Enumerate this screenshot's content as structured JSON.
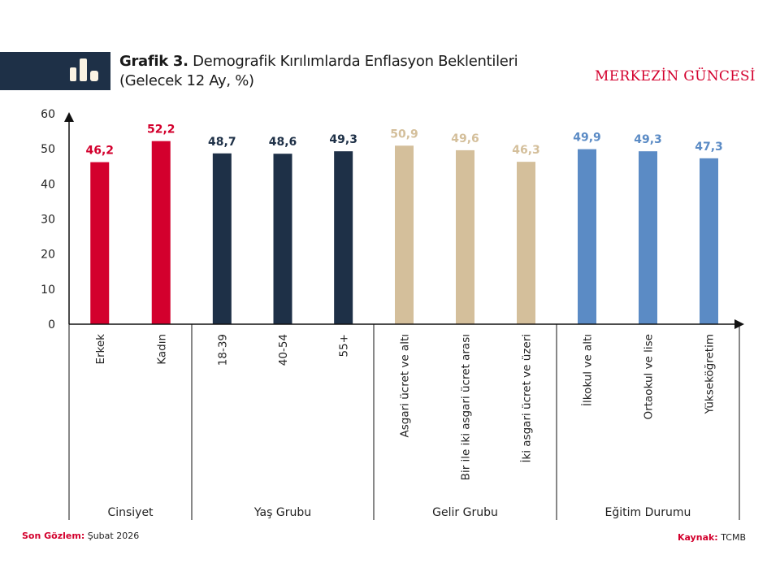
{
  "header": {
    "icon": "bar-chart-icon",
    "title_bold": "Grafik 3.",
    "title_rest": " Demografik Kırılımlarda Enflasyon Beklentileri",
    "subtitle": "(Gelecek 12 Ay, %)",
    "brand": "MERKEZİN GÜNCESİ"
  },
  "colors": {
    "header_band": "#1e3047",
    "brand": "#d3002d",
    "Cinsiyet": "#d3002d",
    "Yaş Grubu": "#1e3047",
    "Gelir Grubu": "#d4bf9b",
    "Eğitim Durumu": "#5b8bc5"
  },
  "chart_data": {
    "type": "bar",
    "title": "Grafik 3. Demografik Kırılımlarda Enflasyon Beklentileri",
    "subtitle": "(Gelecek 12 Ay, %)",
    "xlabel": "",
    "ylabel": "",
    "ylim": [
      0,
      60
    ],
    "yticks": [
      "0",
      "10",
      "20",
      "30",
      "40",
      "50",
      "60"
    ],
    "ytick_values": [
      0,
      10,
      20,
      30,
      40,
      50,
      60
    ],
    "grid": false,
    "legend": "none",
    "categories": [
      "Erkek",
      "Kadın",
      "18-39",
      "40-54",
      "55+",
      "Asgari ücret ve altı",
      "Bir ile iki asgari ücret arası",
      "İki asgari ücret ve üzeri",
      "İlkokul ve altı",
      "Ortaokul ve lise",
      "Yükseköğretim"
    ],
    "values": [
      46.2,
      52.2,
      48.7,
      48.6,
      49.3,
      50.9,
      49.6,
      46.3,
      49.9,
      49.3,
      47.3
    ],
    "value_labels": [
      "46,2",
      "52,2",
      "48,7",
      "48,6",
      "49,3",
      "50,9",
      "49,6",
      "46,3",
      "49,9",
      "49,3",
      "47,3"
    ],
    "groups": [
      {
        "name": "Cinsiyet",
        "count": 2
      },
      {
        "name": "Yaş Grubu",
        "count": 3
      },
      {
        "name": "Gelir Grubu",
        "count": 3
      },
      {
        "name": "Eğitim Durumu",
        "count": 3
      }
    ]
  },
  "footer": {
    "last_obs_label": "Son Gözlem:",
    "last_obs_value": " Şubat 2026",
    "source_label": "Kaynak:",
    "source_value": " TCMB"
  }
}
